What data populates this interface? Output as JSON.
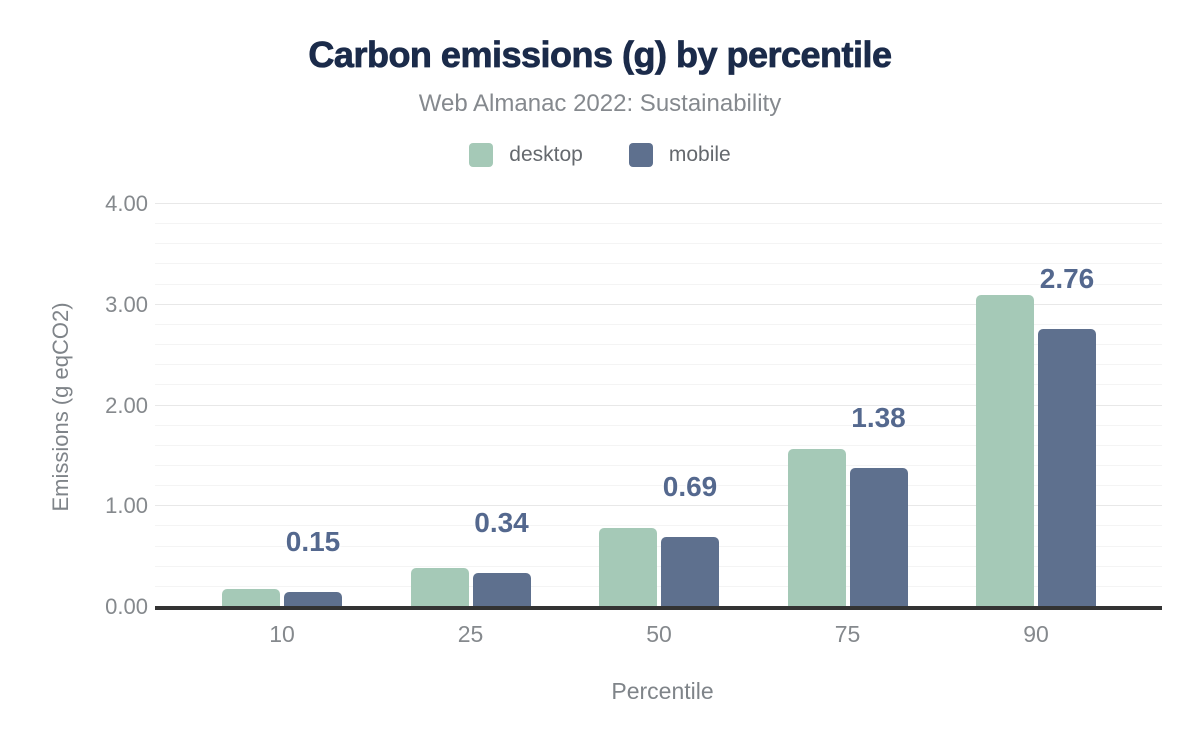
{
  "header": {
    "title": "Carbon emissions (g) by percentile",
    "subtitle": "Web Almanac 2022: Sustainability"
  },
  "legend": [
    {
      "label": "desktop",
      "color": "#a5c9b7"
    },
    {
      "label": "mobile",
      "color": "#5e708e"
    }
  ],
  "chart_data": {
    "type": "bar",
    "title": "Carbon emissions (g) by percentile",
    "subtitle": "Web Almanac 2022: Sustainability",
    "categories": [
      "10",
      "25",
      "50",
      "75",
      "90"
    ],
    "series": [
      {
        "name": "desktop",
        "color": "#a5c9b7",
        "values": [
          0.18,
          0.39,
          0.78,
          1.57,
          3.1
        ],
        "data_labels": []
      },
      {
        "name": "mobile",
        "color": "#5e708e",
        "values": [
          0.15,
          0.34,
          0.69,
          1.38,
          2.76
        ],
        "data_labels": [
          "0.15",
          "0.34",
          "0.69",
          "1.38",
          "2.76"
        ]
      }
    ],
    "xlabel": "Percentile",
    "ylabel": "Emissions (g eqCO2)",
    "ylim": [
      0,
      4
    ],
    "yticks": [
      "0.00",
      "1.00",
      "2.00",
      "3.00",
      "4.00"
    ],
    "grid": {
      "major_step": 1.0,
      "minor_step": 0.2,
      "visible": true
    },
    "legend_position": "top",
    "data_label_color": "#54688e",
    "axis_line_color": "#333333"
  }
}
